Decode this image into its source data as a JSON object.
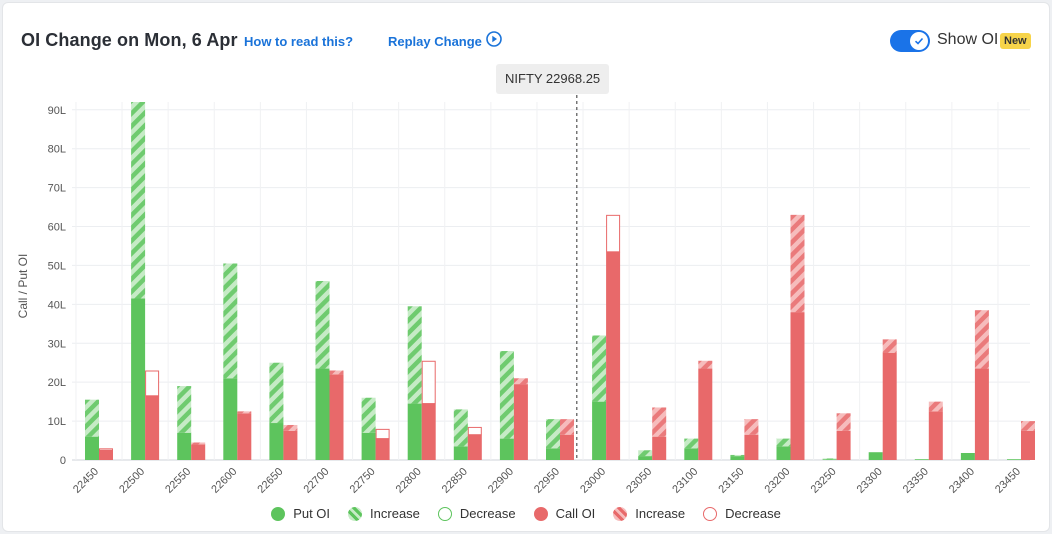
{
  "header": {
    "title": "OI Change on Mon, 6 Apr",
    "how_to_link": "How to read this?",
    "replay_link": "Replay Change",
    "toggle_label": "Show OI",
    "badge": "New"
  },
  "spot_label": "NIFTY 22968.25",
  "colors": {
    "put": "#5dc45d",
    "put_light": "#a9dea9",
    "call": "#e8696a",
    "call_light": "#f2a8a8",
    "accent": "#1a73e8"
  },
  "legend": [
    {
      "label": "Put OI",
      "kind": "put-solid"
    },
    {
      "label": "Increase",
      "kind": "put-increase"
    },
    {
      "label": "Decrease",
      "kind": "put-decrease"
    },
    {
      "label": "Call OI",
      "kind": "call-solid"
    },
    {
      "label": "Increase",
      "kind": "call-increase"
    },
    {
      "label": "Decrease",
      "kind": "call-decrease"
    }
  ],
  "chart_data": {
    "type": "bar",
    "ylabel": "Call / Put OI",
    "ylim": [
      0,
      92
    ],
    "yticks": [
      0,
      10,
      20,
      30,
      40,
      50,
      60,
      70,
      80,
      90
    ],
    "ytick_labels": [
      "0",
      "10L",
      "20L",
      "30L",
      "40L",
      "50L",
      "60L",
      "70L",
      "80L",
      "90L"
    ],
    "spot_value": 22968.25,
    "categories": [
      "22450",
      "22500",
      "22550",
      "22600",
      "22650",
      "22700",
      "22750",
      "22800",
      "22850",
      "22900",
      "22950",
      "23000",
      "23050",
      "23100",
      "23150",
      "23200",
      "23250",
      "23300",
      "23350",
      "23400",
      "23450"
    ],
    "series": [
      {
        "name": "Put OI",
        "base": [
          6,
          41.5,
          7,
          21,
          9.5,
          23.5,
          7,
          14.5,
          3.5,
          5.5,
          3,
          15,
          1,
          3,
          1,
          3.5,
          0.2,
          2,
          0.2,
          1.8,
          0.2
        ],
        "change": [
          9.5,
          50.5,
          12,
          29.5,
          15.5,
          22.5,
          9,
          25,
          9.5,
          22.5,
          7.5,
          17,
          1.5,
          2.5,
          0.3,
          2,
          0.2,
          0,
          0,
          0,
          0
        ]
      },
      {
        "name": "Call OI",
        "base": [
          2.5,
          16.5,
          4,
          12,
          7.5,
          22,
          5.5,
          14.5,
          6.5,
          19.5,
          6.5,
          53.5,
          6,
          23.5,
          6.5,
          38,
          7.5,
          27.5,
          12.5,
          23.5,
          7.5
        ],
        "change": [
          0.5,
          6.5,
          0.5,
          0.5,
          1.5,
          1,
          2.5,
          11,
          2,
          1.5,
          4,
          9.5,
          7.5,
          2,
          4,
          25,
          4.5,
          3.5,
          2.5,
          15,
          2.5
        ]
      }
    ]
  }
}
